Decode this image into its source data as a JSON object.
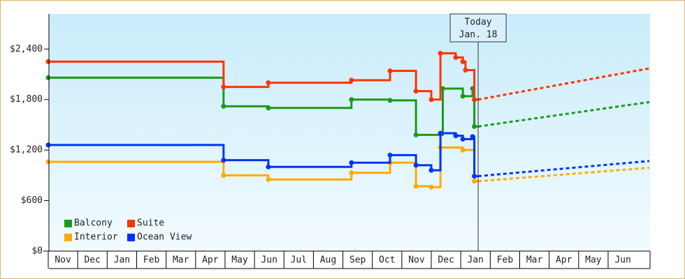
{
  "chart_data": {
    "type": "step-line",
    "xlim": [
      0,
      20.4
    ],
    "ylim": [
      0,
      2800
    ],
    "yticks": [
      {
        "value": 0,
        "label": "$0"
      },
      {
        "value": 600,
        "label": "$600"
      },
      {
        "value": 1200,
        "label": "$1,200"
      },
      {
        "value": 1800,
        "label": "$1,800"
      },
      {
        "value": 2400,
        "label": "$2,400"
      }
    ],
    "xticks": [
      {
        "value": 0.5,
        "label": "Nov"
      },
      {
        "value": 1.5,
        "label": "Dec"
      },
      {
        "value": 2.5,
        "label": "Jan"
      },
      {
        "value": 3.5,
        "label": "Feb"
      },
      {
        "value": 4.5,
        "label": "Mar"
      },
      {
        "value": 5.5,
        "label": "Apr"
      },
      {
        "value": 6.5,
        "label": "May"
      },
      {
        "value": 7.5,
        "label": "Jun"
      },
      {
        "value": 8.5,
        "label": "Jul"
      },
      {
        "value": 9.5,
        "label": "Aug"
      },
      {
        "value": 10.5,
        "label": "Sep"
      },
      {
        "value": 11.5,
        "label": "Oct"
      },
      {
        "value": 12.5,
        "label": "Nov"
      },
      {
        "value": 13.5,
        "label": "Dec"
      },
      {
        "value": 14.5,
        "label": "Jan"
      },
      {
        "value": 15.5,
        "label": "Feb"
      },
      {
        "value": 16.5,
        "label": "Mar"
      },
      {
        "value": 17.5,
        "label": "Apr"
      },
      {
        "value": 18.5,
        "label": "May"
      },
      {
        "value": 19.5,
        "label": "Jun"
      }
    ],
    "annotation": {
      "x": 14.59,
      "lines": [
        "Today",
        "Jan. 18"
      ]
    },
    "forecast_x": [
      14.59,
      20.4
    ],
    "series": [
      {
        "name": "Balcony",
        "color": "#1a9a1a",
        "x": [
          0,
          5.95,
          7.47,
          10.29,
          11.6,
          12.48,
          13.39,
          14.07,
          14.4,
          14.46
        ],
        "values": [
          2060,
          1720,
          1700,
          1800,
          1790,
          1380,
          1930,
          1840,
          1930,
          1480
        ],
        "forecast": [
          1480,
          1770
        ]
      },
      {
        "name": "Suite",
        "color": "#ff3300",
        "x": [
          0,
          5.95,
          7.47,
          10.29,
          11.6,
          12.48,
          13.0,
          13.31,
          13.83,
          14.07,
          14.16,
          14.46
        ],
        "values": [
          2250,
          1950,
          2000,
          2030,
          2140,
          1900,
          1800,
          2350,
          2300,
          2250,
          2150,
          1800
        ],
        "forecast": [
          1800,
          2170
        ]
      },
      {
        "name": "Interior",
        "color": "#ffaa00",
        "x": [
          0,
          5.95,
          7.47,
          10.29,
          11.6,
          12.48,
          13.0,
          13.31,
          14.07,
          14.46
        ],
        "values": [
          1060,
          900,
          850,
          930,
          1050,
          770,
          760,
          1230,
          1200,
          830
        ],
        "forecast": [
          830,
          990
        ]
      },
      {
        "name": "Ocean View",
        "color": "#0033ff",
        "x": [
          0,
          5.95,
          7.47,
          10.29,
          11.6,
          12.48,
          13.0,
          13.31,
          13.83,
          14.07,
          14.4,
          14.46
        ],
        "values": [
          1260,
          1080,
          1000,
          1050,
          1140,
          1020,
          960,
          1400,
          1370,
          1330,
          1360,
          890
        ],
        "forecast": [
          890,
          1070
        ]
      }
    ]
  }
}
